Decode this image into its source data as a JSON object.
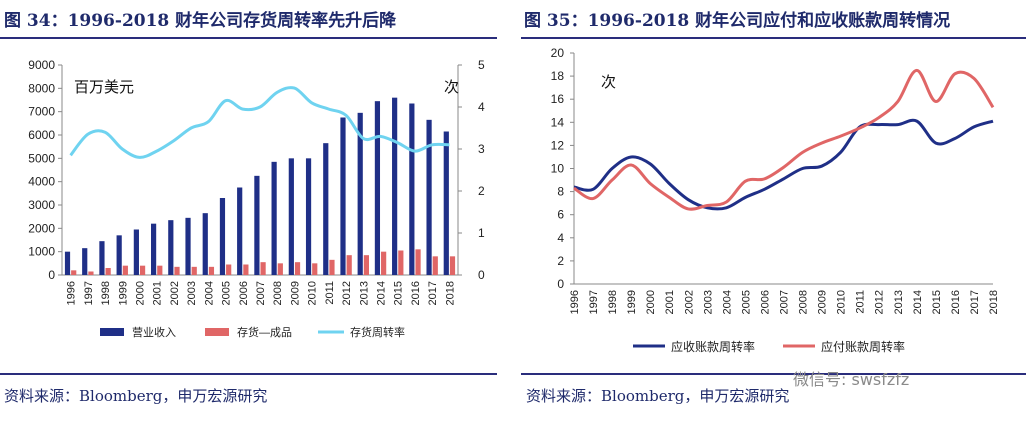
{
  "left": {
    "title": "图 34：1996-2018 财年公司存货周转率先升后降",
    "source": "资料来源：Bloomberg，申万宏源研究"
  },
  "right": {
    "title": "图 35：1996-2018 财年公司应付和应收账款周转情况",
    "source": "资料来源：Bloomberg，申万宏源研究"
  },
  "watermark": "微信号: swsfzfz",
  "chart_data": [
    {
      "type": "bar",
      "categories": [
        "1996",
        "1997",
        "1998",
        "1999",
        "2000",
        "2001",
        "2002",
        "2003",
        "2004",
        "2005",
        "2006",
        "2007",
        "2008",
        "2009",
        "2010",
        "2011",
        "2012",
        "2013",
        "2014",
        "2015",
        "2016",
        "2017",
        "2018"
      ],
      "left_unit_label": "百万美元",
      "right_unit_label": "次",
      "ylim_left": [
        0,
        9000
      ],
      "yticks_left": [
        0,
        1000,
        2000,
        3000,
        4000,
        5000,
        6000,
        7000,
        8000,
        9000
      ],
      "ylim_right": [
        0,
        5
      ],
      "yticks_right": [
        0,
        1,
        2,
        3,
        4,
        5
      ],
      "series": [
        {
          "name": "营业收入",
          "type": "bar",
          "axis": "left",
          "color": "#1f2f87",
          "values": [
            1000,
            1150,
            1450,
            1700,
            1950,
            2200,
            2350,
            2450,
            2650,
            3300,
            3750,
            4250,
            4850,
            5000,
            5000,
            5650,
            6750,
            6950,
            7450,
            7600,
            7350,
            6650,
            6150
          ]
        },
        {
          "name": "存货—成品",
          "type": "bar",
          "axis": "left",
          "color": "#e06666",
          "values": [
            200,
            150,
            300,
            400,
            400,
            400,
            350,
            350,
            350,
            450,
            450,
            550,
            500,
            550,
            500,
            650,
            850,
            850,
            1000,
            1050,
            1100,
            800,
            800
          ]
        },
        {
          "name": "存货周转率",
          "type": "line",
          "axis": "right",
          "color": "#6fd3f0",
          "values": [
            2.85,
            3.35,
            3.4,
            3.0,
            2.8,
            2.95,
            3.2,
            3.5,
            3.65,
            4.15,
            3.95,
            4.0,
            4.35,
            4.45,
            4.1,
            3.95,
            3.8,
            3.25,
            3.3,
            3.15,
            2.95,
            3.1,
            3.1
          ]
        }
      ],
      "legend_position": "bottom"
    },
    {
      "type": "line",
      "categories": [
        "1996",
        "1997",
        "1998",
        "1999",
        "2000",
        "2001",
        "2002",
        "2003",
        "2004",
        "2005",
        "2006",
        "2007",
        "2008",
        "2009",
        "2010",
        "2011",
        "2012",
        "2013",
        "2014",
        "2015",
        "2016",
        "2017",
        "2018"
      ],
      "unit_label": "次",
      "ylim": [
        0,
        20
      ],
      "yticks": [
        0,
        2,
        4,
        6,
        8,
        10,
        12,
        14,
        16,
        18,
        20
      ],
      "series": [
        {
          "name": "应收账款周转率",
          "color": "#1f2f87",
          "values": [
            8.4,
            8.2,
            10.0,
            11.0,
            10.4,
            8.7,
            7.3,
            6.6,
            6.6,
            7.5,
            8.2,
            9.1,
            10.0,
            10.2,
            11.4,
            13.6,
            13.8,
            13.8,
            14.1,
            12.2,
            12.6,
            13.6,
            14.1
          ]
        },
        {
          "name": "应付账款周转率",
          "color": "#e06666",
          "values": [
            8.3,
            7.4,
            9.0,
            10.3,
            8.7,
            7.5,
            6.5,
            6.8,
            7.1,
            8.9,
            9.1,
            10.1,
            11.4,
            12.2,
            12.8,
            13.5,
            14.4,
            15.8,
            18.5,
            15.8,
            18.2,
            17.8,
            15.3
          ]
        }
      ],
      "legend_position": "bottom"
    }
  ]
}
